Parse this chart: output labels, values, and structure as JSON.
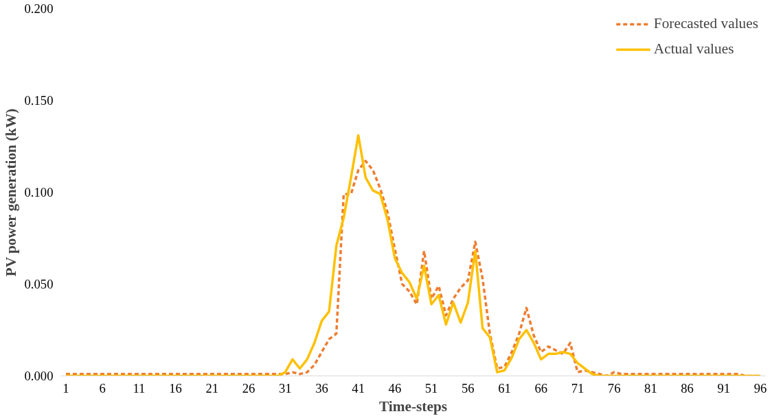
{
  "chart_data": {
    "type": "line",
    "xlabel": "Time-steps",
    "ylabel": "PV power generation (kW)",
    "x": [
      1,
      2,
      3,
      4,
      5,
      6,
      7,
      8,
      9,
      10,
      11,
      12,
      13,
      14,
      15,
      16,
      17,
      18,
      19,
      20,
      21,
      22,
      23,
      24,
      25,
      26,
      27,
      28,
      29,
      30,
      31,
      32,
      33,
      34,
      35,
      36,
      37,
      38,
      39,
      40,
      41,
      42,
      43,
      44,
      45,
      46,
      47,
      48,
      49,
      50,
      51,
      52,
      53,
      54,
      55,
      56,
      57,
      58,
      59,
      60,
      61,
      62,
      63,
      64,
      65,
      66,
      67,
      68,
      69,
      70,
      71,
      72,
      73,
      74,
      75,
      76,
      77,
      78,
      79,
      80,
      81,
      82,
      83,
      84,
      85,
      86,
      87,
      88,
      89,
      90,
      91,
      92,
      93,
      94,
      95,
      96
    ],
    "series": [
      {
        "name": "Forecasted values",
        "color": "#ed7d31",
        "line_style": "dashed",
        "values": [
          0.001,
          0.001,
          0.001,
          0.001,
          0.001,
          0.001,
          0.001,
          0.001,
          0.001,
          0.001,
          0.001,
          0.001,
          0.001,
          0.001,
          0.001,
          0.001,
          0.001,
          0.001,
          0.001,
          0.001,
          0.001,
          0.001,
          0.001,
          0.001,
          0.001,
          0.001,
          0.001,
          0.001,
          0.001,
          0.001,
          0.001,
          0.002,
          0.001,
          0.002,
          0.006,
          0.013,
          0.02,
          0.023,
          0.099,
          0.099,
          0.112,
          0.117,
          0.112,
          0.102,
          0.089,
          0.069,
          0.05,
          0.046,
          0.039,
          0.068,
          0.042,
          0.049,
          0.033,
          0.042,
          0.048,
          0.052,
          0.073,
          0.053,
          0.023,
          0.004,
          0.005,
          0.013,
          0.023,
          0.037,
          0.022,
          0.013,
          0.016,
          0.014,
          0.012,
          0.018,
          0.002,
          0.003,
          0.002,
          0.001,
          0.0,
          0.002,
          0.001,
          0.001,
          0.001,
          0.001,
          0.001,
          0.001,
          0.001,
          0.001,
          0.001,
          0.001,
          0.001,
          0.001,
          0.001,
          0.001,
          0.001,
          0.001,
          0.001,
          0.0,
          0.0,
          0.0
        ]
      },
      {
        "name": "Actual values",
        "color": "#ffc000",
        "line_style": "solid",
        "values": [
          0,
          0,
          0,
          0,
          0,
          0,
          0,
          0,
          0,
          0,
          0,
          0,
          0,
          0,
          0,
          0,
          0,
          0,
          0,
          0,
          0,
          0,
          0,
          0,
          0,
          0,
          0,
          0,
          0,
          0,
          0.002,
          0.009,
          0.004,
          0.009,
          0.018,
          0.03,
          0.035,
          0.071,
          0.086,
          0.108,
          0.131,
          0.108,
          0.101,
          0.099,
          0.085,
          0.064,
          0.056,
          0.051,
          0.042,
          0.06,
          0.039,
          0.044,
          0.028,
          0.04,
          0.029,
          0.04,
          0.068,
          0.026,
          0.021,
          0.002,
          0.003,
          0.01,
          0.02,
          0.025,
          0.018,
          0.009,
          0.012,
          0.012,
          0.013,
          0.012,
          0.007,
          0.004,
          0.001,
          0,
          0,
          0,
          0,
          0,
          0,
          0,
          0,
          0,
          0,
          0,
          0,
          0,
          0,
          0,
          0,
          0,
          0,
          0,
          0,
          0,
          0,
          0
        ]
      }
    ],
    "xlim": [
      0.3,
      96.7
    ],
    "xticks": [
      1,
      6,
      11,
      16,
      21,
      26,
      31,
      36,
      41,
      46,
      51,
      56,
      61,
      66,
      71,
      76,
      81,
      86,
      91,
      96
    ],
    "ylim": [
      0,
      0.2
    ],
    "yticks": [
      {
        "value": 0,
        "label": "0.000"
      },
      {
        "value": 0.05,
        "label": "0.050"
      },
      {
        "value": 0.1,
        "label": "0.100"
      },
      {
        "value": 0.15,
        "label": "0.150"
      },
      {
        "value": 0.2,
        "label": "0.200"
      }
    ],
    "grid": false,
    "legend": "top right",
    "marker": "none"
  }
}
